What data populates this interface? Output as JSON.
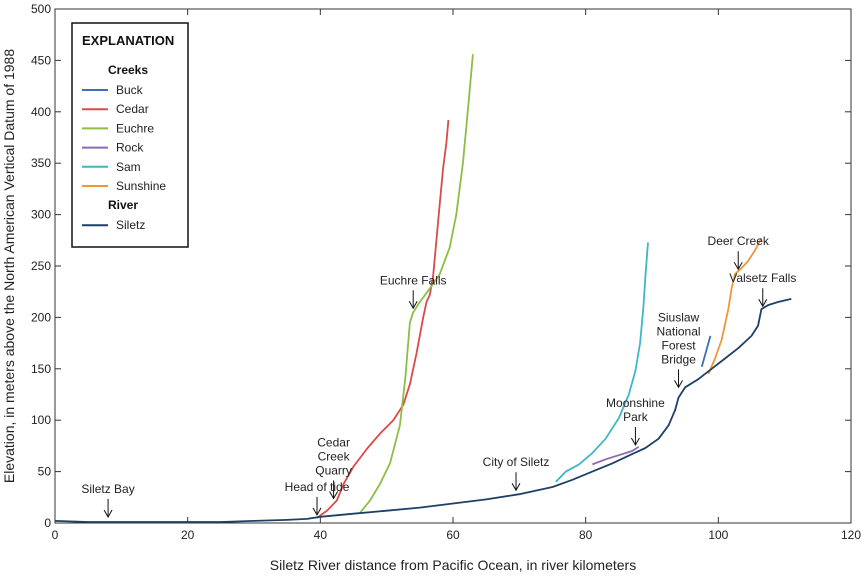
{
  "chart_data": {
    "type": "line",
    "title": "",
    "xlabel": "Siletz River distance from Pacific Ocean, in river kilometers",
    "ylabel": "Elevation, in meters above the North American Vertical Datum of 1988",
    "xlim": [
      0,
      120
    ],
    "ylim": [
      0,
      500
    ],
    "xticks": [
      0,
      20,
      40,
      60,
      80,
      100,
      120
    ],
    "yticks": [
      0,
      50,
      100,
      150,
      200,
      250,
      300,
      350,
      400,
      450,
      500
    ],
    "grid": false,
    "legend": {
      "title": "EXPLANATION",
      "placement": "top-left",
      "groups": [
        {
          "heading": "Creeks",
          "entries": [
            "Buck",
            "Cedar",
            "Euchre",
            "Rock",
            "Sam",
            "Sunshine"
          ]
        },
        {
          "heading": "River",
          "entries": [
            "Siletz"
          ]
        }
      ]
    },
    "series": [
      {
        "name": "Buck",
        "color": "#3b6fb6",
        "x": [
          97.5,
          98.2,
          98.8
        ],
        "y": [
          152,
          168,
          182
        ]
      },
      {
        "name": "Cedar",
        "color": "#d94a4a",
        "x": [
          39.5,
          41,
          42.5,
          43.5,
          45,
          47,
          49,
          51,
          52.5,
          53.5,
          54.5,
          55.5,
          56,
          56.5,
          57,
          57.5,
          58,
          58.5,
          59,
          59.3
        ],
        "y": [
          5,
          12,
          22,
          38,
          55,
          72,
          87,
          100,
          115,
          135,
          165,
          200,
          215,
          222,
          240,
          275,
          310,
          345,
          370,
          392
        ]
      },
      {
        "name": "Euchre",
        "color": "#8cbd45",
        "x": [
          46,
          47.5,
          49,
          50.5,
          52,
          52.8,
          53.5,
          54,
          55,
          56.5,
          58,
          59.5,
          60.5,
          61.5,
          62,
          62.5,
          63
        ],
        "y": [
          10,
          22,
          38,
          58,
          95,
          140,
          195,
          205,
          215,
          228,
          242,
          268,
          300,
          350,
          385,
          420,
          456
        ]
      },
      {
        "name": "Rock",
        "color": "#8a6bb1",
        "x": [
          81,
          83,
          85,
          87,
          88
        ],
        "y": [
          57,
          62,
          66,
          70,
          74
        ]
      },
      {
        "name": "Sam",
        "color": "#3fb6c6",
        "x": [
          75.5,
          77,
          79,
          81,
          83,
          85,
          86.5,
          87.5,
          88.2,
          88.7,
          89,
          89.4
        ],
        "y": [
          40,
          50,
          57,
          68,
          82,
          102,
          125,
          148,
          175,
          210,
          240,
          273
        ]
      },
      {
        "name": "Sunshine",
        "color": "#f0963a",
        "x": [
          98.5,
          99.5,
          100.5,
          101.5,
          102,
          102.5,
          103.5,
          104.5,
          105.5,
          106.5
        ],
        "y": [
          145,
          160,
          178,
          208,
          228,
          242,
          248,
          255,
          265,
          277
        ]
      },
      {
        "name": "Siletz",
        "color": "#1f3f66",
        "x": [
          0,
          5,
          10,
          15,
          20,
          25,
          30,
          35,
          38,
          40,
          45,
          50,
          55,
          60,
          65,
          70,
          75,
          78,
          81,
          84,
          87,
          89,
          91,
          92.5,
          93.5,
          94,
          95,
          97,
          99,
          101,
          103,
          105,
          106,
          106.5,
          107.5,
          109,
          111
        ],
        "y": [
          2,
          1,
          1,
          1,
          1,
          1,
          2,
          3,
          4,
          6,
          9,
          12,
          15,
          19,
          23,
          28,
          35,
          42,
          50,
          58,
          67,
          73,
          82,
          95,
          110,
          122,
          132,
          140,
          150,
          160,
          170,
          182,
          192,
          208,
          212,
          215,
          218
        ]
      }
    ],
    "annotations": [
      {
        "lines": [
          "Siletz Bay"
        ],
        "x": 8,
        "y": 2
      },
      {
        "lines": [
          "Head of tide"
        ],
        "x": 39.5,
        "y": 4
      },
      {
        "lines": [
          "Cedar",
          "Creek",
          "Quarry"
        ],
        "x": 42,
        "y": 20
      },
      {
        "lines": [
          "City of Siletz"
        ],
        "x": 69.5,
        "y": 28
      },
      {
        "lines": [
          "Moonshine",
          "Park"
        ],
        "x": 87.5,
        "y": 72
      },
      {
        "lines": [
          "Euchre Falls"
        ],
        "x": 54,
        "y": 205
      },
      {
        "lines": [
          "Siuslaw",
          "National",
          "Forest",
          "Bridge"
        ],
        "x": 94,
        "y": 128
      },
      {
        "lines": [
          "Deer Creek"
        ],
        "x": 103,
        "y": 243
      },
      {
        "lines": [
          "Valsetz Falls"
        ],
        "x": 106.7,
        "y": 207
      }
    ]
  }
}
